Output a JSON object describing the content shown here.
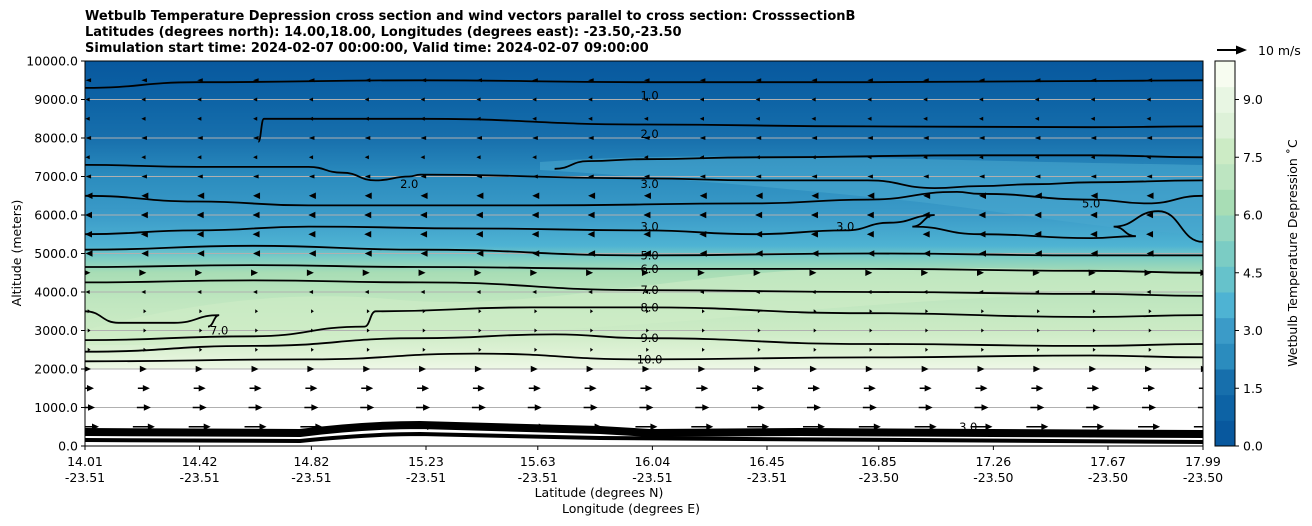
{
  "title": {
    "line1": "Wetbulb Temperature Depression cross section and wind vectors parallel to cross section: CrosssectionB",
    "line2": "Latitudes (degrees north): 14.00,18.00, Longitudes (degrees east): -23.50,-23.50",
    "line3": "Simulation start time: 2024-02-07 00:00:00, Valid time: 2024-02-07 09:00:00"
  },
  "wind_key": "10 m/s",
  "colors": {
    "ramp": [
      "#08589e",
      "#0d63a5",
      "#176fac",
      "#2b8cbe",
      "#3b9bc8",
      "#4eb3d3",
      "#66c2cb",
      "#7bccc4",
      "#94d6c0",
      "#a8ddb5",
      "#bde5c1",
      "#ccebc5",
      "#ddf1d8",
      "#e8f6e3",
      "#f7fcf0"
    ]
  },
  "chart_data": {
    "type": "heatmap",
    "title": "Wetbulb Temperature Depression cross section and wind vectors parallel to cross section: CrosssectionB",
    "xlabel_lat": "Latitude (degrees N)",
    "xlabel_lon": "Longitude (degrees E)",
    "ylabel": "Altitude (meters)",
    "ylim": [
      0,
      10000
    ],
    "x_ticks": [
      {
        "lat": "14.01",
        "lon": "-23.51",
        "frac": 0.0
      },
      {
        "lat": "14.42",
        "lon": "-23.51",
        "frac": 0.1025
      },
      {
        "lat": "14.82",
        "lon": "-23.51",
        "frac": 0.2025
      },
      {
        "lat": "15.23",
        "lon": "-23.51",
        "frac": 0.305
      },
      {
        "lat": "15.63",
        "lon": "-23.51",
        "frac": 0.405
      },
      {
        "lat": "16.04",
        "lon": "-23.51",
        "frac": 0.5075
      },
      {
        "lat": "16.45",
        "lon": "-23.51",
        "frac": 0.61
      },
      {
        "lat": "16.85",
        "lon": "-23.50",
        "frac": 0.71
      },
      {
        "lat": "17.26",
        "lon": "-23.50",
        "frac": 0.8125
      },
      {
        "lat": "17.67",
        "lon": "-23.50",
        "frac": 0.915
      },
      {
        "lat": "17.99",
        "lon": "-23.50",
        "frac": 1.0
      }
    ],
    "y_ticks": [
      "0.0",
      "1000.0",
      "2000.0",
      "3000.0",
      "4000.0",
      "5000.0",
      "6000.0",
      "7000.0",
      "8000.0",
      "9000.0",
      "10000.0"
    ],
    "colorbar": {
      "label": "Wetbulb Temperature Depression ˚C",
      "range": [
        0,
        10
      ],
      "ticks": [
        "0.0",
        "1.5",
        "3.0",
        "4.5",
        "6.0",
        "7.5",
        "9.0"
      ]
    },
    "contour_labels": [
      {
        "text": "1.0",
        "frac": 0.505,
        "alt": 9100
      },
      {
        "text": "2.0",
        "frac": 0.505,
        "alt": 8100
      },
      {
        "text": "3.0",
        "frac": 0.505,
        "alt": 6800
      },
      {
        "text": "3.0",
        "frac": 0.505,
        "alt": 5700
      },
      {
        "text": "5.0",
        "frac": 0.505,
        "alt": 4950
      },
      {
        "text": "6.0",
        "frac": 0.505,
        "alt": 4600
      },
      {
        "text": "7.0",
        "frac": 0.505,
        "alt": 4050
      },
      {
        "text": "8.0",
        "frac": 0.505,
        "alt": 3600
      },
      {
        "text": "9.0",
        "frac": 0.505,
        "alt": 2800
      },
      {
        "text": "10.0",
        "frac": 0.505,
        "alt": 2250
      },
      {
        "text": "2.0",
        "frac": 0.29,
        "alt": 6800
      },
      {
        "text": "7.0",
        "frac": 0.12,
        "alt": 3000
      },
      {
        "text": "3.0",
        "frac": 0.68,
        "alt": 5700
      },
      {
        "text": "5.0",
        "frac": 0.9,
        "alt": 6300
      },
      {
        "text": "3.0",
        "frac": 0.79,
        "alt": 500
      }
    ],
    "contours": [
      {
        "level": 1.0,
        "points": [
          [
            0.0,
            9300
          ],
          [
            0.1,
            9450
          ],
          [
            0.3,
            9500
          ],
          [
            0.5,
            9450
          ],
          [
            0.7,
            9450
          ],
          [
            0.9,
            9480
          ],
          [
            1.0,
            9500
          ]
        ]
      },
      {
        "level": 2.0,
        "points": [
          [
            0.155,
            7900
          ],
          [
            0.16,
            8500
          ],
          [
            0.3,
            8500
          ],
          [
            0.5,
            8350
          ],
          [
            0.7,
            8300
          ],
          [
            0.9,
            8280
          ],
          [
            1.0,
            8300
          ]
        ]
      },
      {
        "level": 3.0,
        "points": [
          [
            0.0,
            7300
          ],
          [
            0.1,
            7250
          ],
          [
            0.2,
            7250
          ],
          [
            0.23,
            7100
          ],
          [
            0.26,
            6900
          ],
          [
            0.29,
            7000
          ],
          [
            0.3,
            7050
          ],
          [
            0.5,
            6950
          ],
          [
            0.6,
            6900
          ],
          [
            0.7,
            6900
          ],
          [
            0.76,
            6700
          ],
          [
            0.8,
            6750
          ],
          [
            0.85,
            6800
          ],
          [
            0.9,
            6850
          ],
          [
            1.0,
            6900
          ]
        ]
      },
      {
        "level": 3.5,
        "points": [
          [
            0.42,
            7200
          ],
          [
            0.45,
            7400
          ],
          [
            0.5,
            7450
          ],
          [
            0.6,
            7500
          ],
          [
            0.8,
            7550
          ],
          [
            0.9,
            7550
          ],
          [
            1.0,
            7500
          ]
        ]
      },
      {
        "level": 3.0,
        "points": [
          [
            0.0,
            6500
          ],
          [
            0.1,
            6350
          ],
          [
            0.2,
            6250
          ],
          [
            0.4,
            6250
          ],
          [
            0.6,
            6300
          ],
          [
            0.7,
            6400
          ],
          [
            0.78,
            6600
          ],
          [
            0.8,
            6550
          ],
          [
            0.9,
            6400
          ],
          [
            0.95,
            6300
          ],
          [
            1.0,
            6500
          ]
        ]
      },
      {
        "level": 3.0,
        "points": [
          [
            0.0,
            5500
          ],
          [
            0.1,
            5600
          ],
          [
            0.2,
            5700
          ],
          [
            0.35,
            5650
          ],
          [
            0.5,
            5600
          ],
          [
            0.6,
            5500
          ],
          [
            0.68,
            5600
          ],
          [
            0.72,
            5800
          ],
          [
            0.76,
            6000
          ],
          [
            0.74,
            5700
          ],
          [
            0.8,
            5500
          ],
          [
            0.9,
            5400
          ],
          [
            0.94,
            5450
          ],
          [
            0.92,
            5700
          ],
          [
            0.96,
            6100
          ],
          [
            1.0,
            5300
          ]
        ]
      },
      {
        "level": 5.0,
        "points": [
          [
            0.0,
            5100
          ],
          [
            0.15,
            5200
          ],
          [
            0.3,
            5100
          ],
          [
            0.5,
            4950
          ],
          [
            0.7,
            5000
          ],
          [
            0.9,
            4950
          ],
          [
            1.0,
            4950
          ]
        ]
      },
      {
        "level": 6.0,
        "points": [
          [
            0.0,
            4650
          ],
          [
            0.15,
            4700
          ],
          [
            0.3,
            4650
          ],
          [
            0.5,
            4600
          ],
          [
            0.7,
            4600
          ],
          [
            0.9,
            4550
          ],
          [
            1.0,
            4500
          ]
        ]
      },
      {
        "level": 7.0,
        "points": [
          [
            0.0,
            4250
          ],
          [
            0.15,
            4300
          ],
          [
            0.3,
            4250
          ],
          [
            0.5,
            4050
          ],
          [
            0.7,
            4000
          ],
          [
            0.9,
            3950
          ],
          [
            1.0,
            3900
          ]
        ]
      },
      {
        "level": 7.0,
        "points": [
          [
            0.0,
            3500
          ],
          [
            0.03,
            3200
          ],
          [
            0.08,
            3200
          ],
          [
            0.12,
            3400
          ],
          [
            0.11,
            3100
          ]
        ]
      },
      {
        "level": 8.0,
        "points": [
          [
            0.0,
            2750
          ],
          [
            0.15,
            2850
          ],
          [
            0.25,
            3100
          ],
          [
            0.26,
            3500
          ],
          [
            0.4,
            3600
          ],
          [
            0.5,
            3600
          ],
          [
            0.7,
            3450
          ],
          [
            0.9,
            3350
          ],
          [
            1.0,
            3400
          ]
        ]
      },
      {
        "level": 9.0,
        "points": [
          [
            0.0,
            2450
          ],
          [
            0.15,
            2600
          ],
          [
            0.3,
            2800
          ],
          [
            0.42,
            2900
          ],
          [
            0.5,
            2800
          ],
          [
            0.7,
            2650
          ],
          [
            0.9,
            2600
          ],
          [
            1.0,
            2650
          ]
        ]
      },
      {
        "level": 10.0,
        "points": [
          [
            0.0,
            2200
          ],
          [
            0.2,
            2250
          ],
          [
            0.35,
            2400
          ],
          [
            0.5,
            2250
          ],
          [
            0.7,
            2300
          ],
          [
            0.9,
            2350
          ],
          [
            1.0,
            2300
          ]
        ]
      }
    ],
    "wind_vectors": {
      "rows": [
        {
          "alt": 500,
          "length": 22,
          "direction": "right"
        },
        {
          "alt": 1000,
          "length": 14,
          "direction": "right"
        },
        {
          "alt": 1500,
          "length": 12,
          "direction": "right"
        },
        {
          "alt": 2000,
          "length": 6,
          "direction": "right"
        },
        {
          "alt": 2500,
          "length": 2,
          "direction": "right"
        },
        {
          "alt": 3000,
          "length": 2,
          "direction": "right"
        },
        {
          "alt": 3500,
          "length": 2,
          "direction": "right"
        },
        {
          "alt": 4000,
          "length": 3,
          "direction": "left"
        },
        {
          "alt": 4500,
          "length": 5,
          "direction": "right"
        },
        {
          "alt": 5000,
          "length": 5,
          "direction": "left"
        },
        {
          "alt": 5500,
          "length": 6,
          "direction": "left"
        },
        {
          "alt": 6000,
          "length": 6,
          "direction": "left"
        },
        {
          "alt": 6500,
          "length": 5,
          "direction": "left"
        },
        {
          "alt": 7000,
          "length": 4,
          "direction": "left"
        },
        {
          "alt": 7500,
          "length": 3,
          "direction": "left"
        },
        {
          "alt": 8000,
          "length": 4,
          "direction": "left"
        },
        {
          "alt": 8500,
          "length": 3,
          "direction": "left"
        },
        {
          "alt": 9000,
          "length": 3,
          "direction": "left"
        },
        {
          "alt": 9500,
          "length": 4,
          "direction": "left"
        }
      ],
      "columns": 21
    }
  }
}
